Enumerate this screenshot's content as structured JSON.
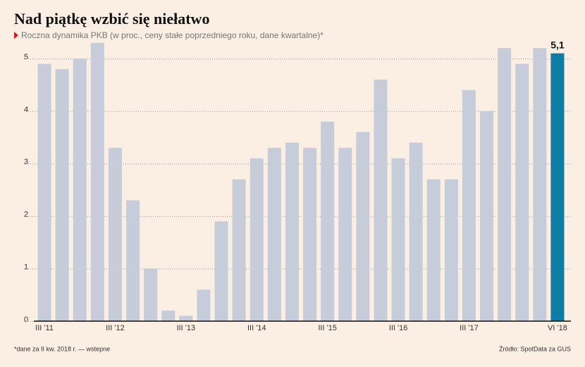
{
  "chart_data": {
    "type": "bar",
    "title": "Nad piątkę wzbić się niełatwo",
    "subtitle": "Roczna dynamika PKB (w proc., ceny stałe poprzedniego roku, dane kwartalne)*",
    "categories": [
      "III '11",
      null,
      null,
      null,
      "III '12",
      null,
      null,
      null,
      "III '13",
      null,
      null,
      null,
      "III '14",
      null,
      null,
      null,
      "III '15",
      null,
      null,
      null,
      "III '16",
      null,
      null,
      null,
      "III '17",
      null,
      null,
      null,
      null,
      "VI '18"
    ],
    "values": [
      4.9,
      4.8,
      5.0,
      5.3,
      3.3,
      2.3,
      1.0,
      0.2,
      0.1,
      0.6,
      1.9,
      2.7,
      3.1,
      3.3,
      3.4,
      3.3,
      3.8,
      3.3,
      3.6,
      4.6,
      3.1,
      3.4,
      2.7,
      2.7,
      4.4,
      4.0,
      5.2,
      4.9,
      5.2,
      5.1
    ],
    "value_labels": [
      null,
      null,
      null,
      null,
      null,
      null,
      null,
      null,
      null,
      null,
      null,
      null,
      null,
      null,
      null,
      null,
      null,
      null,
      null,
      null,
      null,
      null,
      null,
      null,
      null,
      null,
      null,
      null,
      null,
      "5,1"
    ],
    "colors": [
      "#c6ccda",
      "#c6ccda",
      "#c6ccda",
      "#c6ccda",
      "#c6ccda",
      "#c6ccda",
      "#c6ccda",
      "#c6ccda",
      "#c6ccda",
      "#c6ccda",
      "#c6ccda",
      "#c6ccda",
      "#c6ccda",
      "#c6ccda",
      "#c6ccda",
      "#c6ccda",
      "#c6ccda",
      "#c6ccda",
      "#c6ccda",
      "#c6ccda",
      "#c6ccda",
      "#c6ccda",
      "#c6ccda",
      "#c6ccda",
      "#c6ccda",
      "#c6ccda",
      "#c6ccda",
      "#c6ccda",
      "#c6ccda",
      "#0e7ca3"
    ],
    "ylim": [
      0,
      5.3
    ],
    "yticks": [
      0,
      1,
      2,
      3,
      4,
      5
    ],
    "grid": true,
    "footnote": "*dane za II kw. 2018 r. — wstepne",
    "source": "Źródło: SpotData za GUS"
  }
}
